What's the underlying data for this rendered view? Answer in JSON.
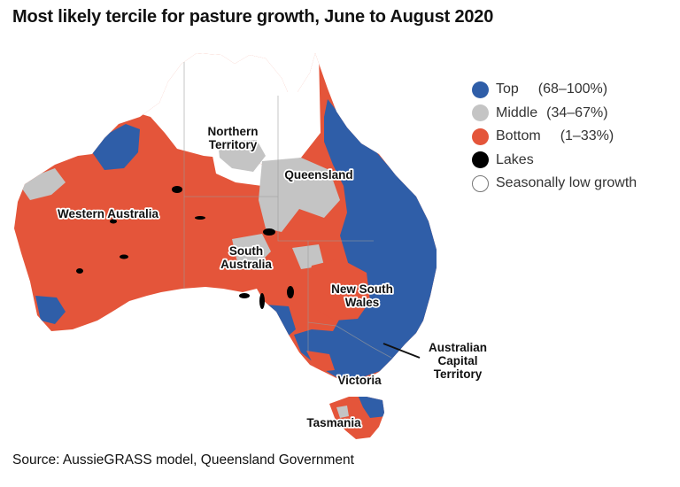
{
  "title": "Most likely tercile for pasture growth, June to August 2020",
  "source": "Source: AussieGRASS model, Queensland Government",
  "colors": {
    "top": "#2f5ea8",
    "middle": "#c4c4c4",
    "bottom": "#e4553a",
    "lakes": "#000000",
    "seasonally_low": "#ffffff"
  },
  "legend": [
    {
      "key": "top",
      "label": "Top",
      "range": "(68–100%)"
    },
    {
      "key": "middle",
      "label": "Middle",
      "range": "(34–67%)"
    },
    {
      "key": "bottom",
      "label": "Bottom",
      "range": "(1–33%)"
    },
    {
      "key": "lakes",
      "label": "Lakes",
      "range": ""
    },
    {
      "key": "seasonally_low",
      "label": "Seasonally low growth",
      "range": ""
    }
  ],
  "regions": {
    "wa": "Western Australia",
    "nt_1": "Northern",
    "nt_2": "Territory",
    "qld": "Queensland",
    "sa_1": "South",
    "sa_2": "Australia",
    "nsw_1": "New South",
    "nsw_2": "Wales",
    "act_1": "Australian",
    "act_2": "Capital",
    "act_3": "Territory",
    "vic": "Victoria",
    "tas": "Tasmania"
  }
}
